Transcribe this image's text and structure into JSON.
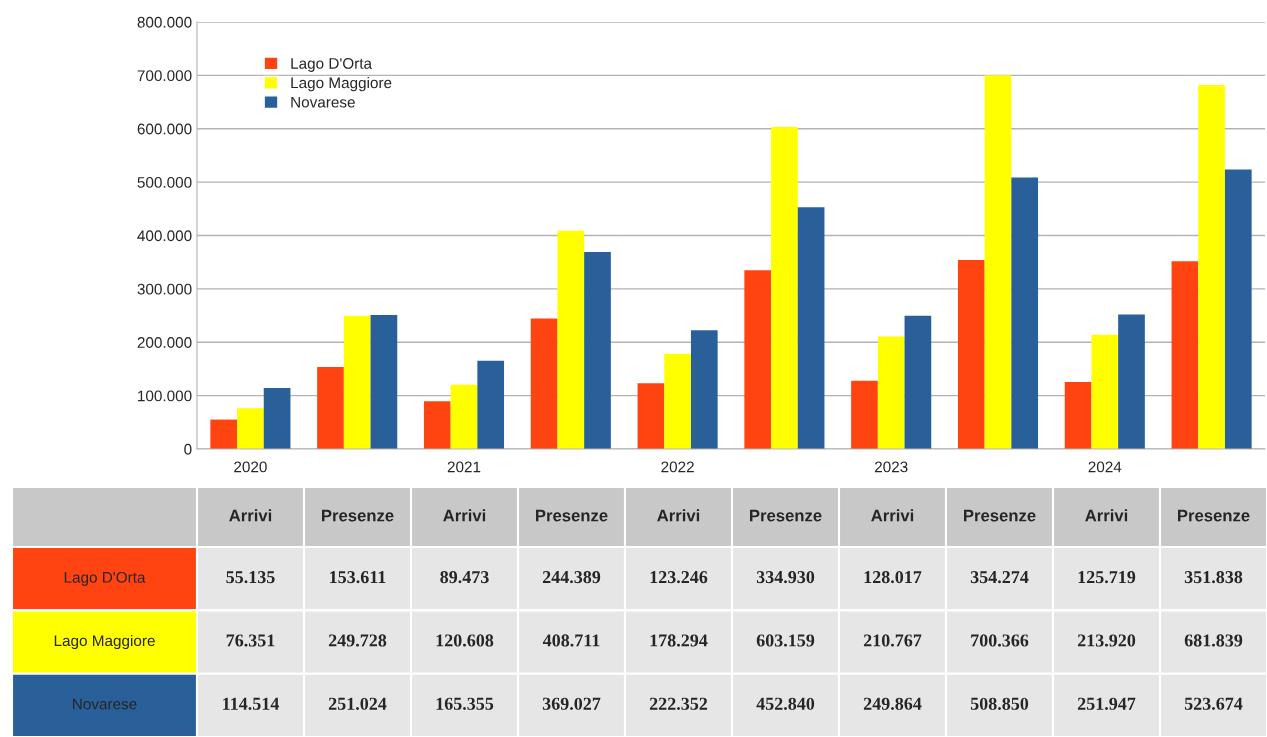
{
  "chart_data": {
    "type": "bar",
    "categories": [
      "Arrivi",
      "Presenze",
      "Arrivi",
      "Presenze",
      "Arrivi",
      "Presenze",
      "Arrivi",
      "Presenze",
      "Arrivi",
      "Presenze"
    ],
    "annotations": [
      "2020",
      "2021",
      "2022",
      "2023",
      "2024"
    ],
    "series": [
      {
        "name": "Lago D'Orta",
        "color": "#ff4411",
        "values": [
          55135,
          153611,
          89473,
          244389,
          123246,
          334930,
          128017,
          354274,
          125719,
          351838
        ],
        "value_labels": [
          "55.135",
          "153.611",
          "89.473",
          "244.389",
          "123.246",
          "334.930",
          "128.017",
          "354.274",
          "125.719",
          "351.838"
        ]
      },
      {
        "name": "Lago Maggiore",
        "color": "#ffff00",
        "values": [
          76351,
          249728,
          120608,
          408711,
          178294,
          603159,
          210767,
          700366,
          213920,
          681839
        ],
        "value_labels": [
          "76.351",
          "249.728",
          "120.608",
          "408.711",
          "178.294",
          "603.159",
          "210.767",
          "700.366",
          "213.920",
          "681.839"
        ]
      },
      {
        "name": "Novarese",
        "color": "#2a6099",
        "values": [
          114514,
          251024,
          165355,
          369027,
          222352,
          452840,
          249864,
          508850,
          251947,
          523674
        ],
        "value_labels": [
          "114.514",
          "251.024",
          "165.355",
          "369.027",
          "222.352",
          "452.840",
          "249.864",
          "508.850",
          "251.947",
          "523.674"
        ]
      }
    ],
    "ylim": [
      0,
      800000
    ],
    "yticks": [
      0,
      {
        "value": 100000,
        "label": "100.000"
      },
      {
        "value": 200000,
        "label": "200.000"
      },
      {
        "value": 300000,
        "label": "300.000"
      },
      {
        "value": 400000,
        "label": "400.000"
      },
      {
        "value": 500000,
        "label": "500.000"
      },
      {
        "value": 600000,
        "label": "600.000"
      },
      {
        "value": 700000,
        "label": "700.000"
      },
      {
        "value": 800000,
        "label": "800.000"
      }
    ],
    "grid": "y",
    "legend": "top left"
  }
}
